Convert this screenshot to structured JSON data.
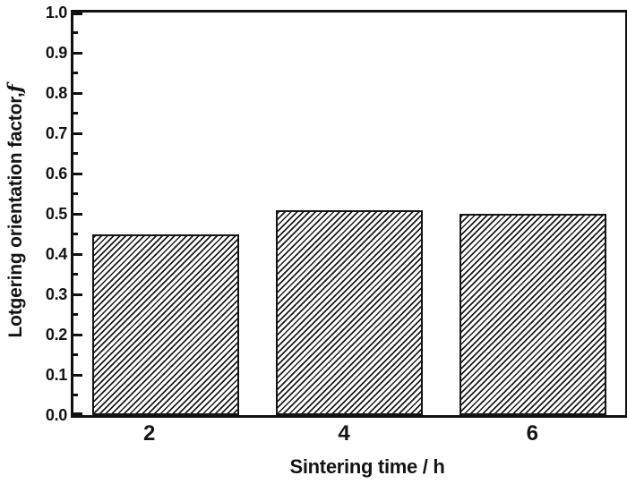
{
  "chart_data": {
    "type": "bar",
    "title": "",
    "categories": [
      "2",
      "4",
      "6"
    ],
    "values": [
      0.45,
      0.51,
      0.5
    ],
    "xlabel": "Sintering time / h",
    "ylabel": "Lotgering orientation factor,",
    "ylabel_symbol": "f",
    "ylim": [
      0.0,
      1.0
    ],
    "y_major_tick_step": 0.1,
    "y_minor_tick_step": 0.05,
    "y_tick_labels": [
      "0.0",
      "0.1",
      "0.2",
      "0.3",
      "0.4",
      "0.5",
      "0.6",
      "0.7",
      "0.8",
      "0.9",
      "1.0"
    ],
    "grid": false,
    "legend_position": "none",
    "bar_fill": "diagonal-hatch",
    "tick_direction": "in",
    "colors": {
      "axis": "#111111",
      "text": "#141414",
      "hatch": "#1c1c1c",
      "bar_background": "#ffffff",
      "background": "#ffffff"
    }
  }
}
